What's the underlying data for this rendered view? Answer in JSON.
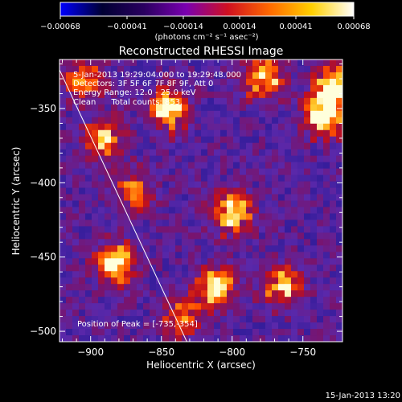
{
  "chart_data": {
    "type": "heatmap",
    "title": "Reconstructed RHESSI Image",
    "xlabel": "Heliocentric X (arcsec)",
    "ylabel": "Heliocentric Y (arcsec)",
    "xlim": [
      -922,
      -722
    ],
    "ylim": [
      -507,
      -317
    ],
    "x_ticks": [
      -900,
      -850,
      -800,
      -750
    ],
    "x_tick_labels": [
      "−900",
      "−850",
      "−800",
      "−750"
    ],
    "y_ticks": [
      -350,
      -400,
      -450,
      -500
    ],
    "y_tick_labels": [
      "−350",
      "−400",
      "−450",
      "−500"
    ],
    "colorbar": {
      "range": [
        -0.00068,
        0.00068
      ],
      "tick_labels": [
        "−0.00068",
        "−0.00041",
        "−0.00014",
        "0.00014",
        "0.00041",
        "0.00068"
      ],
      "unit_label": "(photons cm⁻² s⁻¹ asec⁻²)",
      "colors": [
        "#0000ff",
        "#000033",
        "#2a0060",
        "#7a00b0",
        "#d01020",
        "#ff6a00",
        "#ffd000",
        "#ffffff"
      ]
    },
    "annotations": [
      "5-Jan-2013 19:29:04.000 to 19:29:48.000",
      "Detectors: 3F 5F 6F 7F 8F 9F, Att 0",
      "Energy Range: 12.0 - 25.0 keV",
      "Clean      Total counts: 853.",
      "Position of Peak = [-735,-354]"
    ],
    "limb_line": [
      [
        -922,
        -324
      ],
      [
        -832,
        -507
      ]
    ],
    "bright_sources": [
      {
        "x": -882,
        "y": -455,
        "strength": 0.95
      },
      {
        "x": -845,
        "y": -350,
        "strength": 0.9
      },
      {
        "x": -735,
        "y": -354,
        "strength": 1.0
      },
      {
        "x": -728,
        "y": -335,
        "strength": 0.9
      },
      {
        "x": -800,
        "y": -420,
        "strength": 0.9
      },
      {
        "x": -812,
        "y": -470,
        "strength": 0.85
      },
      {
        "x": -778,
        "y": -330,
        "strength": 0.8
      },
      {
        "x": -890,
        "y": -370,
        "strength": 0.7
      },
      {
        "x": -765,
        "y": -470,
        "strength": 0.7
      },
      {
        "x": -905,
        "y": -330,
        "strength": 0.65
      },
      {
        "x": -870,
        "y": -405,
        "strength": 0.55
      },
      {
        "x": -835,
        "y": -490,
        "strength": 0.6
      }
    ]
  },
  "footer_timestamp": "15-Jan-2013 13:20"
}
